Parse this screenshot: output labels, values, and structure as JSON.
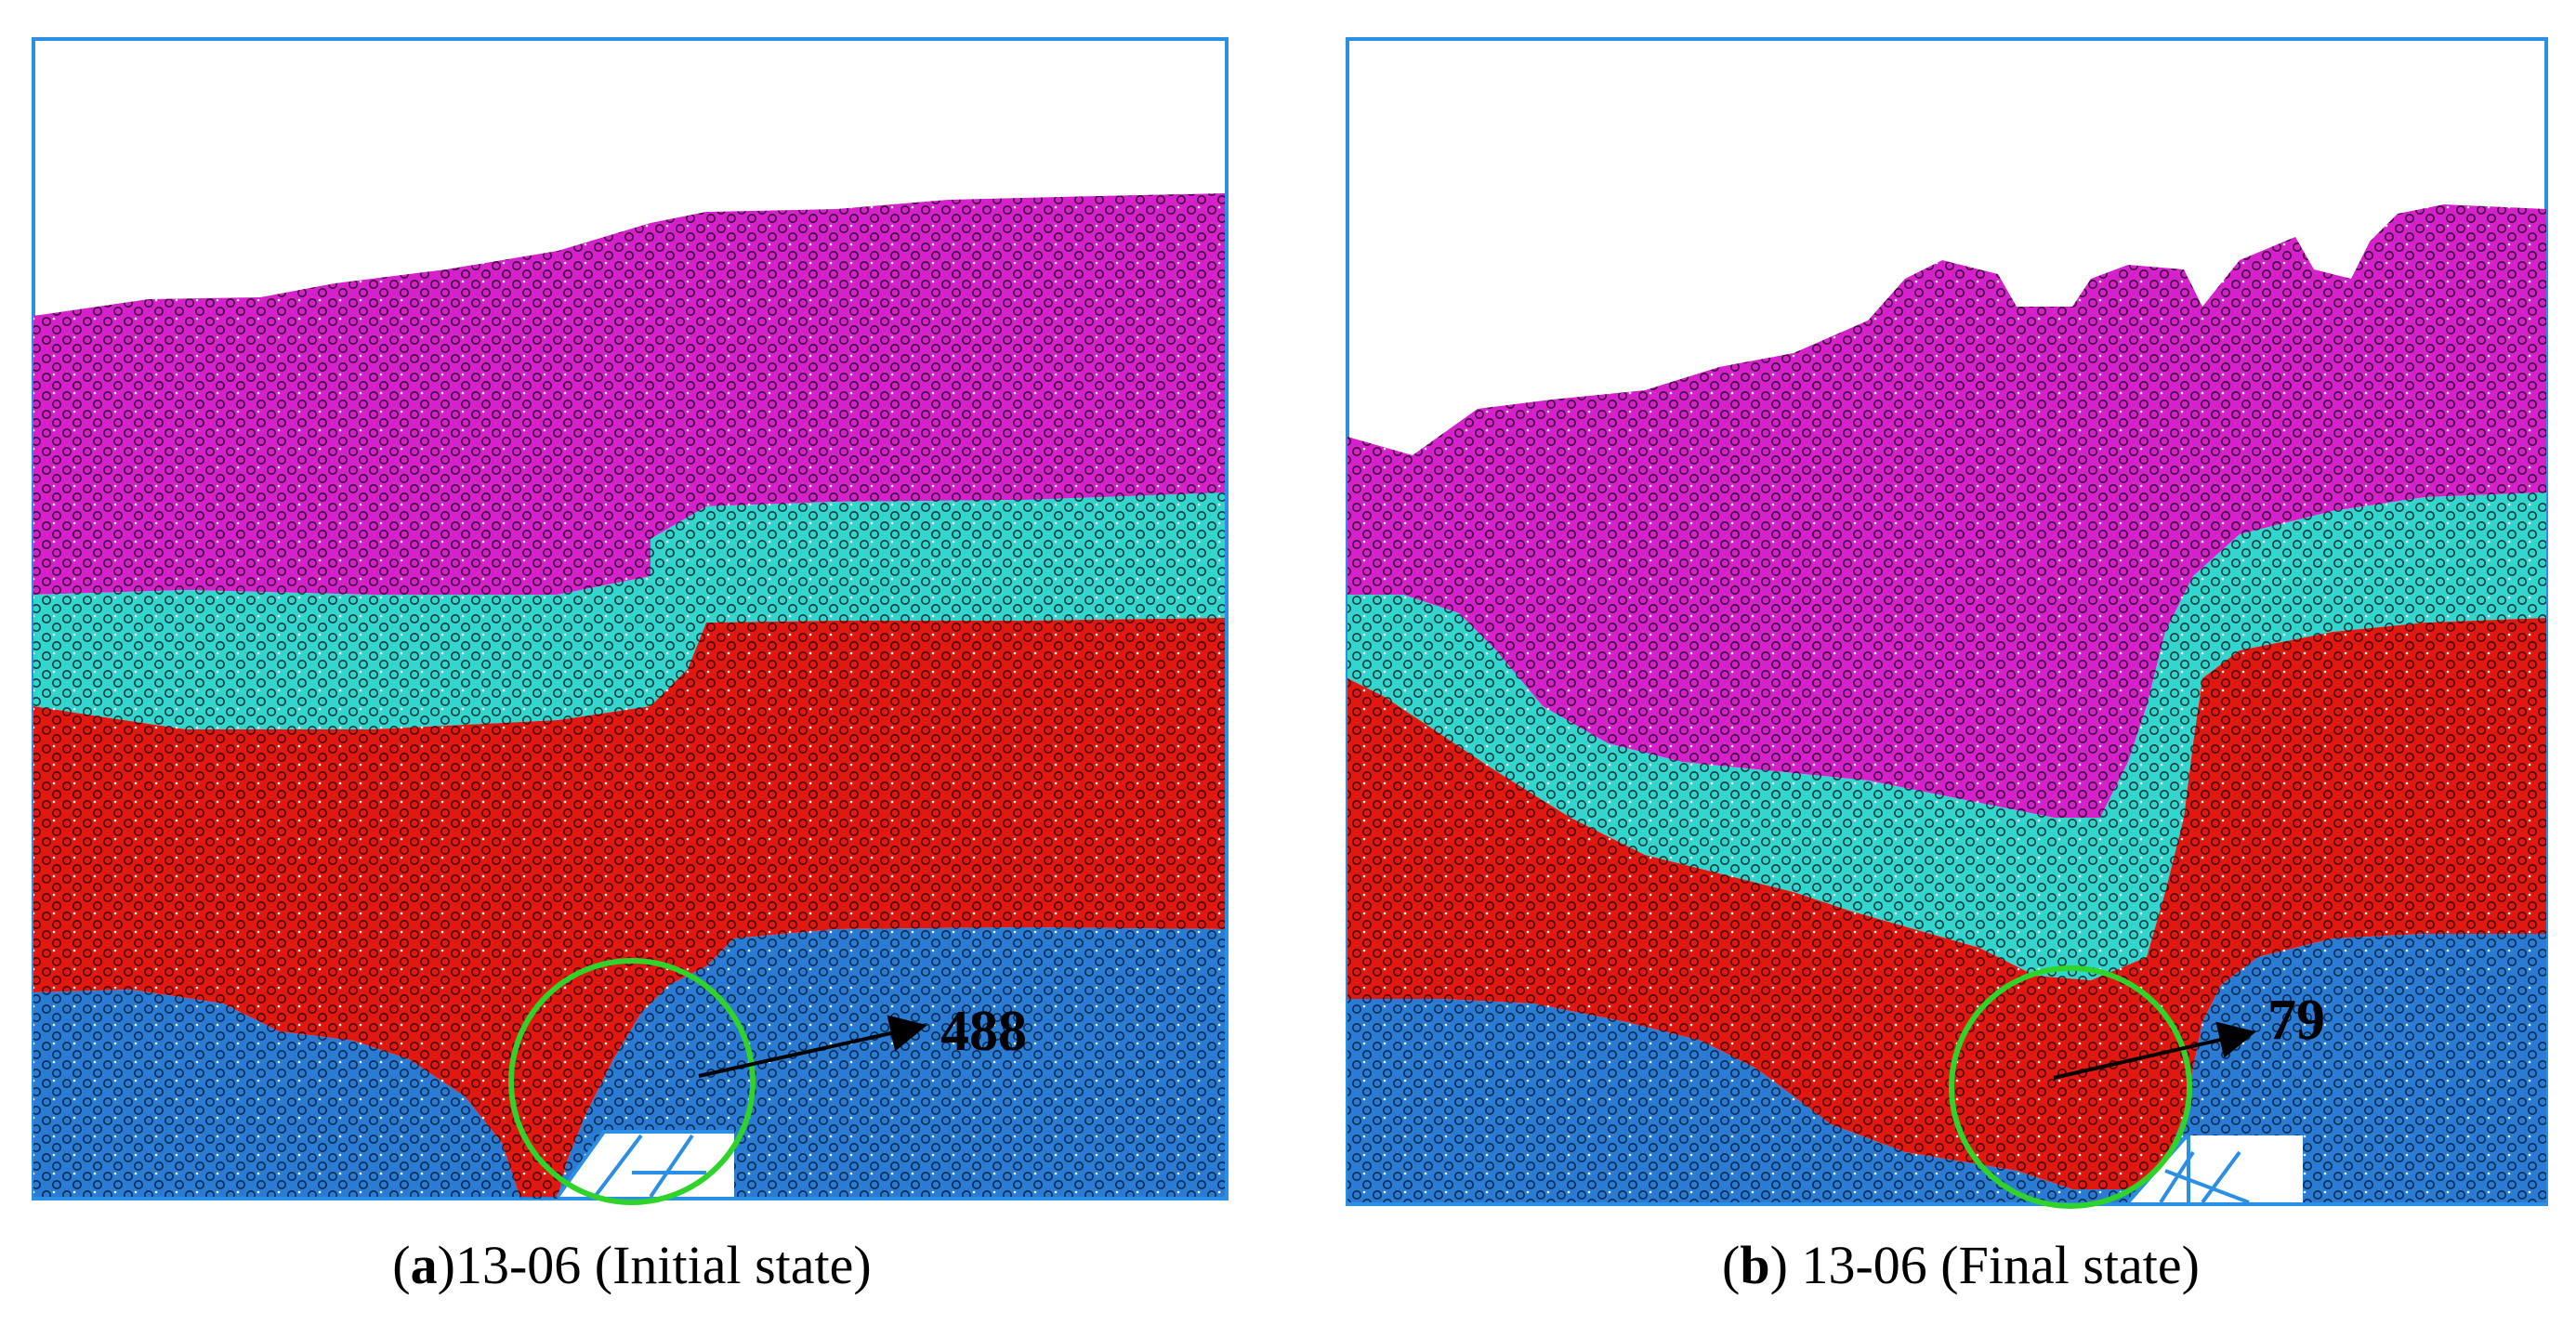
{
  "panels": [
    {
      "id": "a",
      "annotation": "488",
      "caption": {
        "letter": "a",
        "open": "(",
        "close": ")",
        "text": "13-06 (Initial state)"
      },
      "layers": [
        "magenta",
        "cyan",
        "red",
        "blue"
      ]
    },
    {
      "id": "b",
      "annotation": "79",
      "caption": {
        "letter": "b",
        "open": "(",
        "close": ")",
        "text": " 13-06 (Final state)"
      },
      "layers": [
        "magenta",
        "cyan",
        "red",
        "blue"
      ]
    }
  ],
  "colors": {
    "magenta": "#d520cc",
    "cyan": "#33d6cf",
    "red": "#e0180f",
    "blue": "#2a7bd4",
    "frame": "#2b8fe6",
    "circle": "#2fd32a",
    "arrow": "#000000"
  }
}
